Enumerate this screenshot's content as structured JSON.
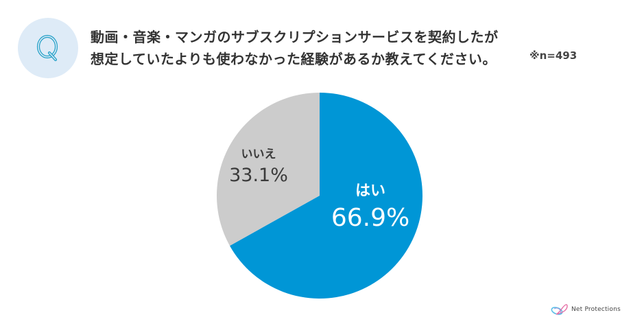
{
  "badge": {
    "letter": "Q",
    "bg_color": "#deebf7",
    "letter_color": "#2aa3c9"
  },
  "question": {
    "line1": "動画・音楽・マンガのサブスクリプションサービスを契約したが",
    "line2": "想定していたよりも使わなかった経験があるか教えてください。"
  },
  "sample_size": "※n=493",
  "logo": {
    "text": "Net Protections",
    "icon": "net-protections-logo-icon"
  },
  "chart_data": {
    "type": "pie",
    "title": "動画・音楽・マンガのサブスクリプションサービスを契約したが想定していたよりも使わなかった経験があるか教えてください。",
    "note": "※n=493",
    "start_angle_deg": 0,
    "direction": "clockwise",
    "center": [
      466,
      285
    ],
    "radius": 150,
    "categories": [
      "はい",
      "いいえ"
    ],
    "values": [
      66.9,
      33.1
    ],
    "colors": [
      "#0096d6",
      "#cccccc"
    ],
    "labels": [
      {
        "name": "はい",
        "pct": "66.9%"
      },
      {
        "name": "いいえ",
        "pct": "33.1%"
      }
    ],
    "legend": "none (inline labels)"
  }
}
